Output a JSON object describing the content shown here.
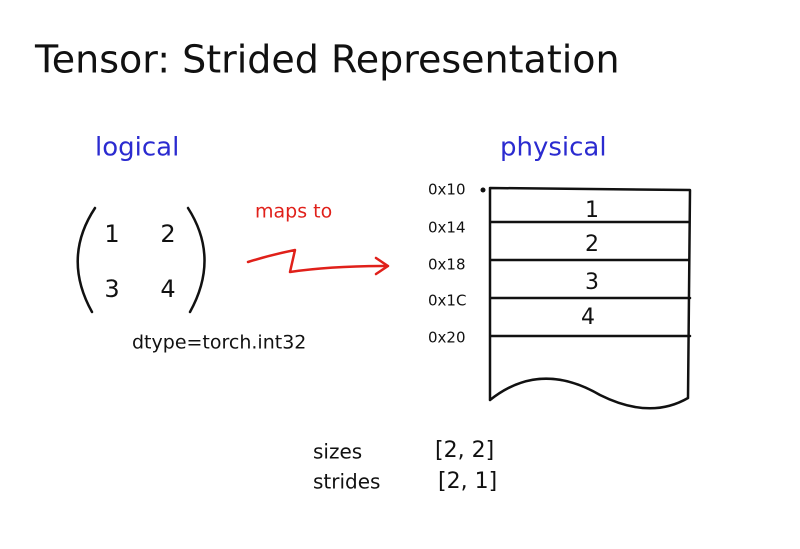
{
  "title": "Tensor: Strided Representation",
  "logical": {
    "label": "logical",
    "matrix": [
      [
        1,
        2
      ],
      [
        3,
        4
      ]
    ],
    "dtype": "dtype=torch.int32"
  },
  "arrow_label": "maps to",
  "physical": {
    "label": "physical",
    "addresses": [
      "0x10",
      "0x14",
      "0x18",
      "0x1C",
      "0x20"
    ],
    "cells": [
      1,
      2,
      3,
      4
    ]
  },
  "metadata": {
    "sizes": {
      "label": "sizes",
      "value": "[2, 2]"
    },
    "strides": {
      "label": "strides",
      "value": "[2, 1]"
    }
  }
}
